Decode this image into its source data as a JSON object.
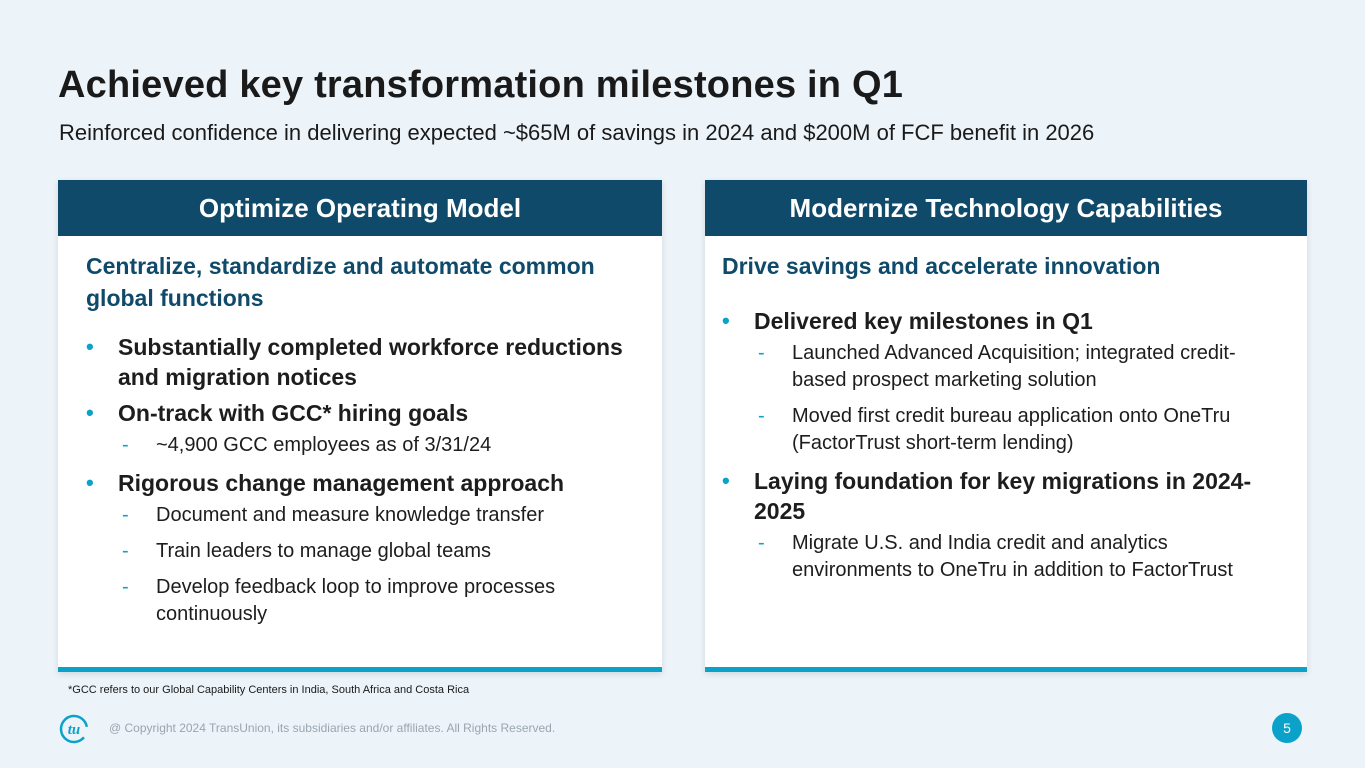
{
  "title": "Achieved key transformation milestones in Q1",
  "subtitle": "Reinforced confidence in delivering expected ~$65M of savings in 2024 and $200M of FCF benefit in 2026",
  "left_card": {
    "header": "Optimize Operating Model",
    "lead": "Centralize, standardize and automate common global functions",
    "bullets": [
      {
        "text": "Substantially completed workforce reductions and migration notices",
        "subs": []
      },
      {
        "text": "On-track with GCC* hiring goals",
        "subs": [
          "~4,900 GCC employees as of 3/31/24"
        ]
      },
      {
        "text": "Rigorous change management approach",
        "subs": [
          "Document and measure knowledge transfer",
          "Train leaders to manage global teams",
          "Develop feedback loop to improve processes continuously"
        ]
      }
    ]
  },
  "right_card": {
    "header": "Modernize Technology Capabilities",
    "lead": "Drive savings and accelerate innovation",
    "bullets": [
      {
        "text": "Delivered key milestones in Q1",
        "subs": [
          "Launched Advanced Acquisition; integrated credit-based prospect marketing solution",
          "Moved first credit bureau application onto OneTru (FactorTrust short-term lending)"
        ]
      },
      {
        "text": "Laying foundation for key migrations in 2024-2025",
        "subs": [
          "Migrate U.S. and India credit and analytics environments to OneTru in addition to FactorTrust"
        ]
      }
    ]
  },
  "footnote": "*GCC refers to our Global Capability Centers in India, South Africa and Costa Rica",
  "footer": {
    "logo_text": "tu",
    "copyright": "@ Copyright 2024 TransUnion, its subsidiaries and/or affiliates.  All Rights Reserved.",
    "page_number": "5"
  },
  "colors": {
    "header_bg": "#0f4a6a",
    "accent": "#0aa2c9",
    "background": "#ecf4fa"
  }
}
